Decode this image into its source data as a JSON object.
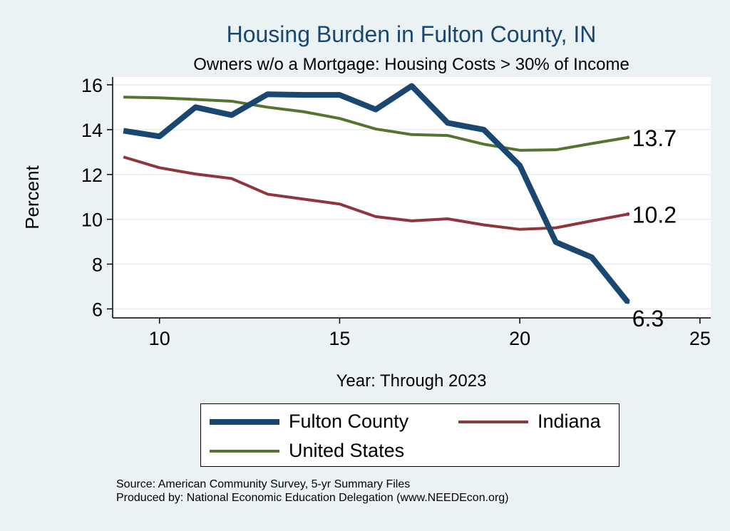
{
  "chart_data": {
    "type": "line",
    "title": "Housing Burden in Fulton County, IN",
    "subtitle": "Owners w/o a Mortgage: Housing Costs > 30% of Income",
    "xlabel": "Year: Through 2023",
    "ylabel": "Percent",
    "xlim": [
      8.7,
      25.3
    ],
    "ylim": [
      5.6,
      16.35
    ],
    "xticks": [
      10,
      15,
      20,
      25
    ],
    "yticks": [
      6,
      8,
      10,
      12,
      14,
      16
    ],
    "grid": true,
    "x": [
      9,
      10,
      11,
      12,
      13,
      14,
      15,
      16,
      17,
      18,
      19,
      20,
      21,
      22,
      23
    ],
    "series": [
      {
        "name": "Fulton County",
        "color": "#1a476f",
        "width": 8,
        "values": [
          13.95,
          13.7,
          15.0,
          14.65,
          15.58,
          15.55,
          15.55,
          14.9,
          15.95,
          14.3,
          14.0,
          12.4,
          8.98,
          8.3,
          6.3
        ]
      },
      {
        "name": "Indiana",
        "color": "#90353b",
        "width": 4,
        "values": [
          12.78,
          12.3,
          12.02,
          11.82,
          11.12,
          10.9,
          10.68,
          10.12,
          9.93,
          10.02,
          9.75,
          9.55,
          9.62,
          9.93,
          10.23
        ]
      },
      {
        "name": "United States",
        "color": "#55752f",
        "width": 4,
        "values": [
          15.45,
          15.42,
          15.35,
          15.27,
          15.0,
          14.8,
          14.5,
          14.03,
          13.78,
          13.74,
          13.35,
          13.08,
          13.1,
          13.38,
          13.65
        ]
      }
    ],
    "end_labels": [
      {
        "series": "United States",
        "text": "13.7"
      },
      {
        "series": "Indiana",
        "text": "10.2"
      },
      {
        "series": "Fulton County",
        "text": "6.3"
      }
    ],
    "legend_position": "bottom"
  },
  "legend": {
    "items": [
      {
        "label": "Fulton County",
        "color": "#1a476f"
      },
      {
        "label": "Indiana",
        "color": "#90353b"
      },
      {
        "label": "United States",
        "color": "#55752f"
      }
    ]
  },
  "footer": {
    "source": "Source: American Community Survey, 5-yr Summary Files",
    "produced": "Produced by: National Economic Education Delegation (www.NEEDEcon.org)"
  }
}
